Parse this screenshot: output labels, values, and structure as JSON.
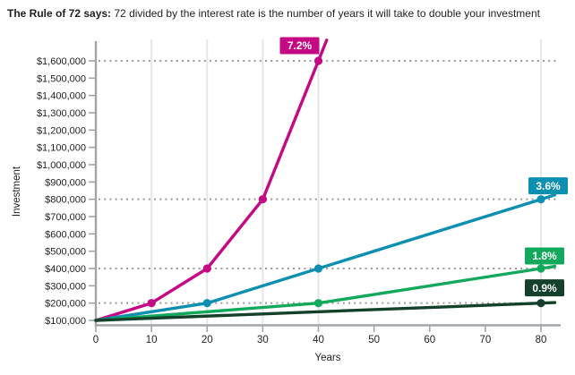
{
  "title": {
    "bold": "The Rule of 72 says:",
    "rest": " 72 divided by the interest rate is the number of years it will take to double your investment"
  },
  "chart_data": {
    "type": "line",
    "title": "The Rule of 72 says: 72 divided by the interest rate is the number of years it will take to double your investment",
    "xlabel": "Years",
    "ylabel": "Investment",
    "x_ticks": [
      0,
      10,
      20,
      30,
      40,
      50,
      60,
      70,
      80
    ],
    "y_ticks": [
      100000,
      200000,
      300000,
      400000,
      500000,
      600000,
      700000,
      800000,
      900000,
      1000000,
      1100000,
      1200000,
      1300000,
      1400000,
      1500000,
      1600000
    ],
    "xlim": [
      0,
      83.5
    ],
    "ylim": [
      100000,
      1780000
    ],
    "currency_prefix": "$",
    "grid": "dotted horizontal lines at doubling values; light vertical lines at doubling decades",
    "h_dotted_gridlines": [
      200000,
      400000,
      800000,
      1600000
    ],
    "v_gridlines_years": [
      10,
      20,
      30,
      40,
      80
    ],
    "legend_position": "inline badges at line ends",
    "series": [
      {
        "name": "7.2%",
        "doubling_years": 10,
        "color": "#c50984",
        "path": [
          [
            0,
            100000
          ],
          [
            10,
            200000
          ],
          [
            20,
            400000
          ],
          [
            30,
            800000
          ],
          [
            40,
            1600000
          ],
          [
            41.5,
            1720000
          ]
        ],
        "markers": [
          [
            10,
            200000
          ],
          [
            20,
            400000
          ],
          [
            30,
            800000
          ],
          [
            40,
            1600000
          ]
        ],
        "label_anchor": [
          40,
          1600000
        ],
        "label_offset": [
          -21,
          -17
        ]
      },
      {
        "name": "3.6%",
        "doubling_years": 20,
        "color": "#0d8fb2",
        "path": [
          [
            0,
            100000
          ],
          [
            20,
            200000
          ],
          [
            40,
            400000
          ],
          [
            80,
            800000
          ],
          [
            82.5,
            825000
          ]
        ],
        "markers": [
          [
            20,
            200000
          ],
          [
            40,
            400000
          ],
          [
            80,
            800000
          ]
        ],
        "label_anchor": [
          80,
          800000
        ],
        "label_offset": [
          8,
          -15
        ]
      },
      {
        "name": "1.8%",
        "doubling_years": 40,
        "color": "#12a95c",
        "path": [
          [
            0,
            100000
          ],
          [
            40,
            200000
          ],
          [
            80,
            400000
          ],
          [
            82.5,
            412500
          ]
        ],
        "markers": [
          [
            40,
            200000
          ],
          [
            80,
            400000
          ]
        ],
        "label_anchor": [
          80,
          400000
        ],
        "label_offset": [
          4,
          -14
        ]
      },
      {
        "name": "0.9%",
        "doubling_years": 80,
        "color": "#14402c",
        "path": [
          [
            0,
            100000
          ],
          [
            80,
            200000
          ],
          [
            82.5,
            203125
          ]
        ],
        "markers": [
          [
            80,
            200000
          ]
        ],
        "label_anchor": [
          80,
          200000
        ],
        "label_offset": [
          4,
          -17
        ]
      }
    ]
  },
  "colors": {
    "axis": "#9fa4a7",
    "tick": "#9fa4a7",
    "grid_dotted": "#9a9a9a",
    "grid_vertical": "#e4e6e7",
    "text": "#1f1f1f",
    "badge_text": "#ffffff",
    "background": "#ffffff"
  }
}
